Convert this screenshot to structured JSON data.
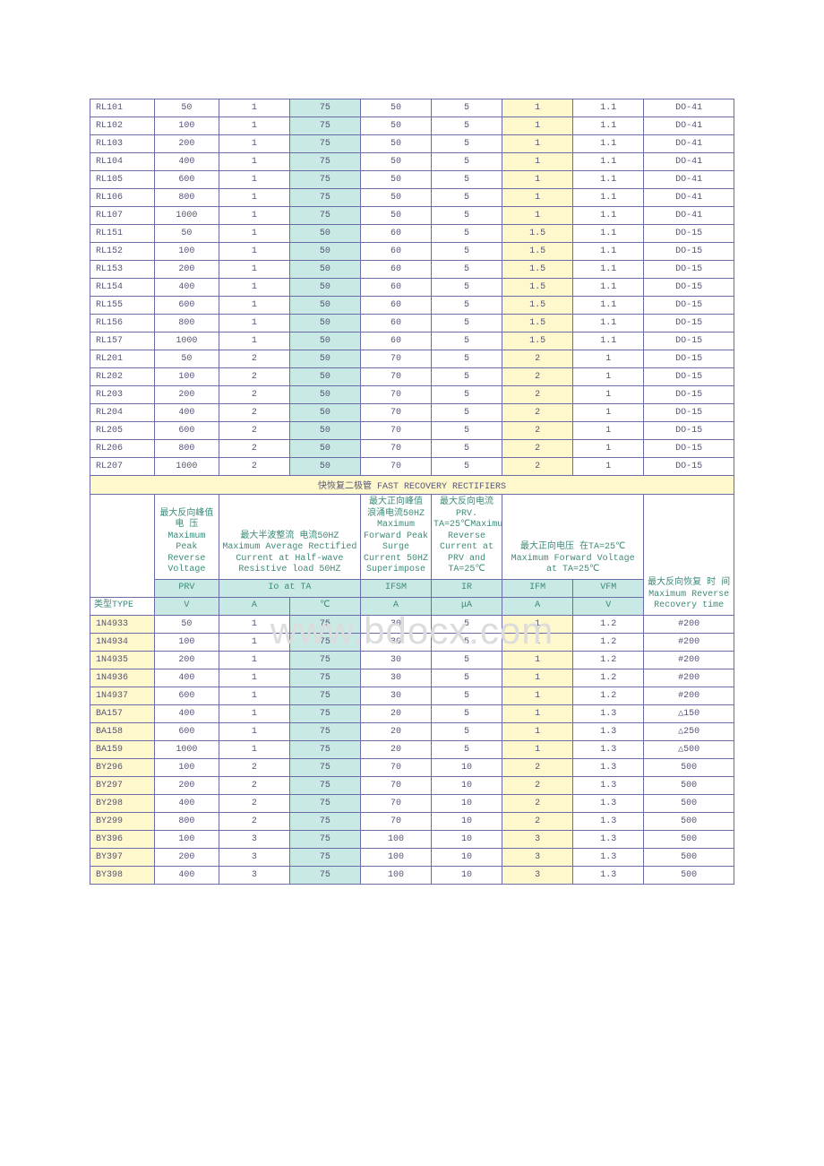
{
  "watermark": "www.bdocx.com",
  "colors": {
    "border": "#6b6ba8",
    "cyan": "#c9e9e5",
    "yellow": "#fff8cc",
    "header_text": "#3d8a7a",
    "cell_text": "#555577"
  },
  "topTable": {
    "rows": [
      [
        "RL101",
        "50",
        "1",
        "75",
        "50",
        "5",
        "1",
        "1.1",
        "DO-41"
      ],
      [
        "RL102",
        "100",
        "1",
        "75",
        "50",
        "5",
        "1",
        "1.1",
        "DO-41"
      ],
      [
        "RL103",
        "200",
        "1",
        "75",
        "50",
        "5",
        "1",
        "1.1",
        "DO-41"
      ],
      [
        "RL104",
        "400",
        "1",
        "75",
        "50",
        "5",
        "1",
        "1.1",
        "DO-41"
      ],
      [
        "RL105",
        "600",
        "1",
        "75",
        "50",
        "5",
        "1",
        "1.1",
        "DO-41"
      ],
      [
        "RL106",
        "800",
        "1",
        "75",
        "50",
        "5",
        "1",
        "1.1",
        "DO-41"
      ],
      [
        "RL107",
        "1000",
        "1",
        "75",
        "50",
        "5",
        "1",
        "1.1",
        "DO-41"
      ],
      [
        "RL151",
        "50",
        "1",
        "50",
        "60",
        "5",
        "1.5",
        "1.1",
        "DO-15"
      ],
      [
        "RL152",
        "100",
        "1",
        "50",
        "60",
        "5",
        "1.5",
        "1.1",
        "DO-15"
      ],
      [
        "RL153",
        "200",
        "1",
        "50",
        "60",
        "5",
        "1.5",
        "1.1",
        "DO-15"
      ],
      [
        "RL154",
        "400",
        "1",
        "50",
        "60",
        "5",
        "1.5",
        "1.1",
        "DO-15"
      ],
      [
        "RL155",
        "600",
        "1",
        "50",
        "60",
        "5",
        "1.5",
        "1.1",
        "DO-15"
      ],
      [
        "RL156",
        "800",
        "1",
        "50",
        "60",
        "5",
        "1.5",
        "1.1",
        "DO-15"
      ],
      [
        "RL157",
        "1000",
        "1",
        "50",
        "60",
        "5",
        "1.5",
        "1.1",
        "DO-15"
      ],
      [
        "RL201",
        "50",
        "2",
        "50",
        "70",
        "5",
        "2",
        "1",
        "DO-15"
      ],
      [
        "RL202",
        "100",
        "2",
        "50",
        "70",
        "5",
        "2",
        "1",
        "DO-15"
      ],
      [
        "RL203",
        "200",
        "2",
        "50",
        "70",
        "5",
        "2",
        "1",
        "DO-15"
      ],
      [
        "RL204",
        "400",
        "2",
        "50",
        "70",
        "5",
        "2",
        "1",
        "DO-15"
      ],
      [
        "RL205",
        "600",
        "2",
        "50",
        "70",
        "5",
        "2",
        "1",
        "DO-15"
      ],
      [
        "RL206",
        "800",
        "2",
        "50",
        "70",
        "5",
        "2",
        "1",
        "DO-15"
      ],
      [
        "RL207",
        "1000",
        "2",
        "50",
        "70",
        "5",
        "2",
        "1",
        "DO-15"
      ]
    ]
  },
  "sectionTitle": "快恢复二极管 FAST RECOVERY RECTIFIERS",
  "header": {
    "descRow": {
      "c1": "",
      "c2": "最大反向峰值 电 压 Maximum Peak Reverse Voltage",
      "c34": "最大半波整流 电流50HZ Maximum Average Rectified Current at Half-wave Resistive load 50HZ",
      "c5": "最大正向峰值\n浪涌电流50HZ Maximum Forward Peak Surge Current 50HZ Superimpose",
      "c6": "最大反向电流 PRV. TA=25℃Maximum Reverse Current at PRV and TA=25℃",
      "c78": "最大正向电压 在TA=25℃ Maximum Forward Voltage at TA=25℃",
      "c9": "最大反向恢复 时 间 Maximum Reverse Recovery time"
    },
    "symbolRow": [
      "",
      "PRV",
      "Io at TA",
      "IFSM",
      "IR",
      "IFM",
      "VFM"
    ],
    "unitRow": [
      "类型TYPE",
      "V",
      "A",
      "℃",
      "A",
      "μA",
      "A",
      "V"
    ]
  },
  "bottomTable": {
    "rows": [
      [
        "1N4933",
        "50",
        "1",
        "75",
        "30",
        "5",
        "1",
        "1.2",
        "#200"
      ],
      [
        "1N4934",
        "100",
        "1",
        "75",
        "30",
        "5",
        "1",
        "1.2",
        "#200"
      ],
      [
        "1N4935",
        "200",
        "1",
        "75",
        "30",
        "5",
        "1",
        "1.2",
        "#200"
      ],
      [
        "1N4936",
        "400",
        "1",
        "75",
        "30",
        "5",
        "1",
        "1.2",
        "#200"
      ],
      [
        "1N4937",
        "600",
        "1",
        "75",
        "30",
        "5",
        "1",
        "1.2",
        "#200"
      ],
      [
        "BA157",
        "400",
        "1",
        "75",
        "20",
        "5",
        "1",
        "1.3",
        "△150"
      ],
      [
        "BA158",
        "600",
        "1",
        "75",
        "20",
        "5",
        "1",
        "1.3",
        "△250"
      ],
      [
        "BA159",
        "1000",
        "1",
        "75",
        "20",
        "5",
        "1",
        "1.3",
        "△500"
      ],
      [
        "BY296",
        "100",
        "2",
        "75",
        "70",
        "10",
        "2",
        "1.3",
        "500"
      ],
      [
        "BY297",
        "200",
        "2",
        "75",
        "70",
        "10",
        "2",
        "1.3",
        "500"
      ],
      [
        "BY298",
        "400",
        "2",
        "75",
        "70",
        "10",
        "2",
        "1.3",
        "500"
      ],
      [
        "BY299",
        "800",
        "2",
        "75",
        "70",
        "10",
        "2",
        "1.3",
        "500"
      ],
      [
        "BY396",
        "100",
        "3",
        "75",
        "100",
        "10",
        "3",
        "1.3",
        "500"
      ],
      [
        "BY397",
        "200",
        "3",
        "75",
        "100",
        "10",
        "3",
        "1.3",
        "500"
      ],
      [
        "BY398",
        "400",
        "3",
        "75",
        "100",
        "10",
        "3",
        "1.3",
        "500"
      ]
    ]
  }
}
